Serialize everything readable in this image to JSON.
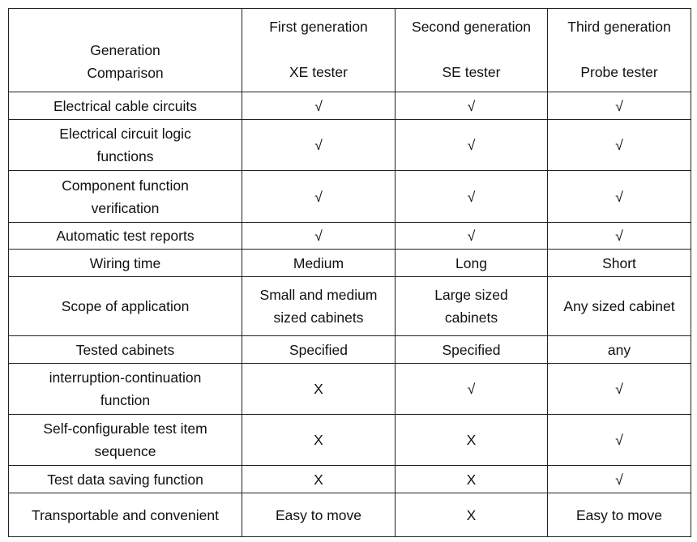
{
  "table": {
    "header": [
      [
        "Generation",
        "Comparison"
      ],
      [
        "First generation",
        "XE tester"
      ],
      [
        "Second generation",
        "SE tester"
      ],
      [
        "Third generation",
        "Probe tester"
      ]
    ],
    "rows": [
      [
        "Electrical cable circuits",
        "√",
        "√",
        "√"
      ],
      [
        [
          "Electrical circuit logic",
          "functions"
        ],
        "√",
        "√",
        "√"
      ],
      [
        [
          "Component function",
          "verification"
        ],
        "√",
        "√",
        "√"
      ],
      [
        "Automatic test reports",
        "√",
        "√",
        "√"
      ],
      [
        "Wiring time",
        "Medium",
        "Long",
        "Short"
      ],
      [
        "Scope of application",
        [
          "Small and medium",
          "sized cabinets"
        ],
        [
          "Large sized",
          "cabinets"
        ],
        "Any sized cabinet"
      ],
      [
        "Tested cabinets",
        "Specified",
        "Specified",
        "any"
      ],
      [
        [
          "interruption-continuation",
          "function"
        ],
        "X",
        "√",
        "√"
      ],
      [
        [
          "Self-configurable test item",
          "sequence"
        ],
        "X",
        "X",
        "√"
      ],
      [
        "Test data saving function",
        "X",
        "X",
        "√"
      ],
      [
        "Transportable and convenient",
        "Easy to move",
        "X",
        "Easy to move"
      ]
    ]
  }
}
